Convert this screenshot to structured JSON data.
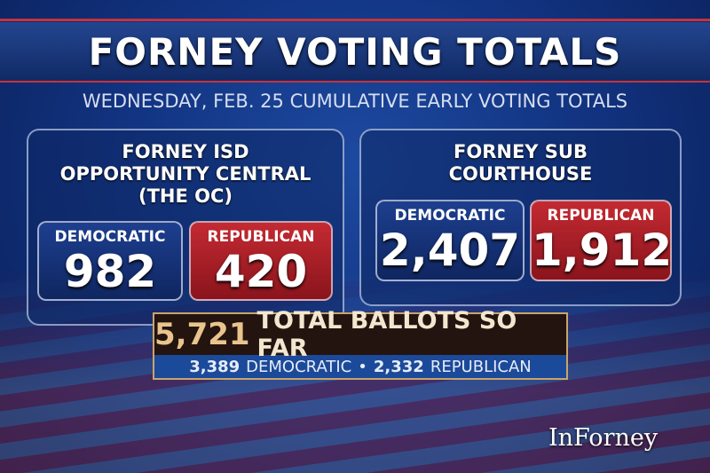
{
  "title": "FORNEY VOTING TOTALS",
  "subtitle": "WEDNESDAY, FEB. 25 CUMULATIVE EARLY VOTING TOTALS",
  "locations": [
    {
      "title_lines": [
        "FORNEY ISD",
        "OPPORTUNITY CENTRAL",
        "(THE OC)"
      ],
      "democratic_label": "DEMOCRATIC",
      "democratic": "982",
      "republican_label": "REPUBLICAN",
      "republican": "420"
    },
    {
      "title_lines": [
        "FORNEY SUB",
        "COURTHOUSE"
      ],
      "democratic_label": "DEMOCRATIC",
      "democratic": "2,407",
      "republican_label": "REPUBLICAN",
      "republican": "1,912"
    }
  ],
  "total": {
    "number": "5,721",
    "label": "TOTAL BALLOTS SO FAR",
    "dem_number": "3,389",
    "dem_label": "DEMOCRATIC",
    "separator": "•",
    "rep_number": "2,332",
    "rep_label": "REPUBLICAN"
  },
  "logo": "InForney",
  "colors": {
    "democratic": "#1d3f8f",
    "republican": "#c42a32",
    "gold": "#e9c48c"
  }
}
